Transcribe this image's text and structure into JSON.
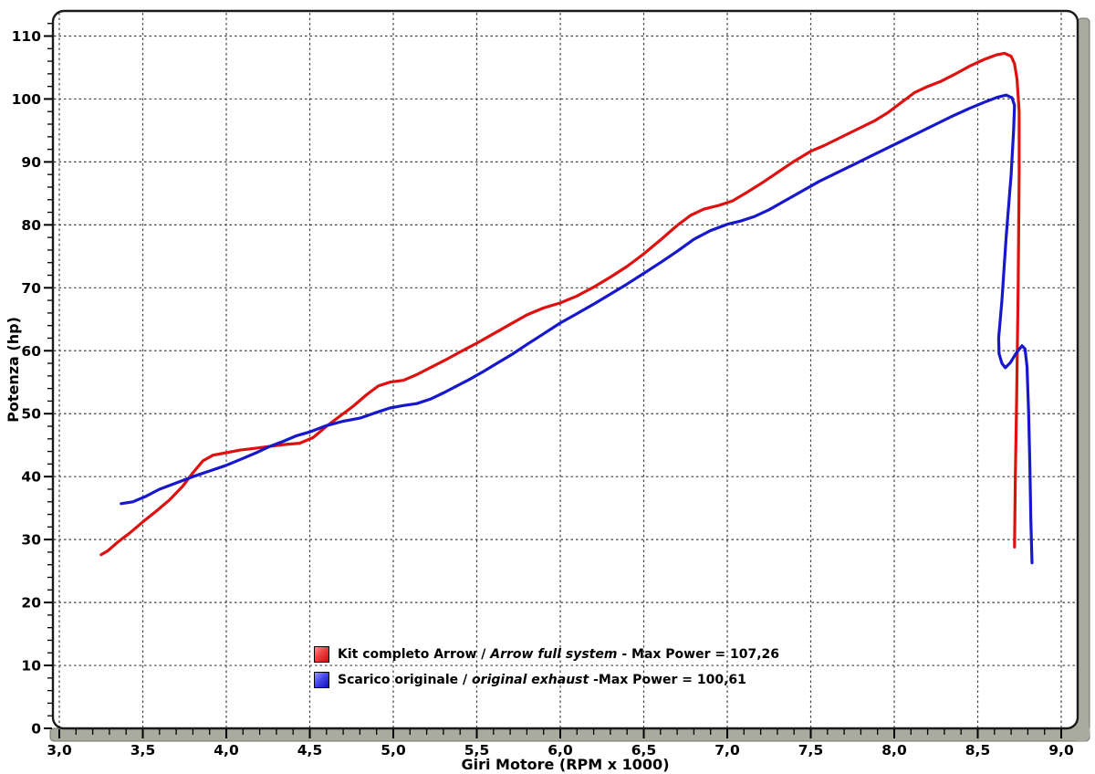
{
  "frame": {
    "plot_background": "#ffffff",
    "border_color": "#1a1a1a",
    "bezel_color": "#a8ab9e",
    "bezel_edge_color": "#6f7267",
    "grid_color": "#3f3f3f",
    "tick_color": "#000000",
    "label_color": "#000000"
  },
  "chart_data": {
    "type": "line",
    "title": "",
    "xlabel": "Giri Motore (RPM x 1000)",
    "ylabel": "Potenza (hp)",
    "grid": {
      "style": "dashed",
      "both_axes": true
    },
    "legend_position": "inside-bottom-center",
    "x_axis": {
      "min": 2.96,
      "max": 9.1,
      "minor_step": 0.1,
      "major_tick_values": [
        3.0,
        3.5,
        4.0,
        4.5,
        5.0,
        5.5,
        6.0,
        6.5,
        7.0,
        7.5,
        8.0,
        8.5,
        9.0
      ],
      "major_tick_labels": [
        "3,0",
        "3,5",
        "4,0",
        "4,5",
        "5,0",
        "5,5",
        "6,0",
        "6,5",
        "7,0",
        "7,5",
        "8,0",
        "8,5",
        "9,0"
      ]
    },
    "y_axis": {
      "min": 0,
      "max": 114,
      "minor_step": 2,
      "major_tick_values": [
        0,
        10,
        20,
        30,
        40,
        50,
        60,
        70,
        80,
        90,
        100,
        110
      ],
      "major_tick_labels": [
        "0",
        "10",
        "20",
        "30",
        "40",
        "50",
        "60",
        "70",
        "80",
        "90",
        "100",
        "110"
      ]
    },
    "series": [
      {
        "id": "arrow_full_system",
        "name": "Kit completo Arrow / Arrow full system",
        "color": "#de1111",
        "max_power": 107.26,
        "points": [
          [
            3.25,
            27.6
          ],
          [
            3.29,
            28.2
          ],
          [
            3.35,
            29.6
          ],
          [
            3.42,
            31.0
          ],
          [
            3.5,
            32.8
          ],
          [
            3.58,
            34.5
          ],
          [
            3.66,
            36.3
          ],
          [
            3.74,
            38.5
          ],
          [
            3.8,
            40.6
          ],
          [
            3.86,
            42.5
          ],
          [
            3.92,
            43.4
          ],
          [
            4.0,
            43.8
          ],
          [
            4.08,
            44.2
          ],
          [
            4.17,
            44.5
          ],
          [
            4.26,
            44.8
          ],
          [
            4.35,
            45.1
          ],
          [
            4.44,
            45.3
          ],
          [
            4.52,
            46.2
          ],
          [
            4.6,
            48.0
          ],
          [
            4.68,
            49.6
          ],
          [
            4.76,
            51.2
          ],
          [
            4.84,
            53.0
          ],
          [
            4.91,
            54.4
          ],
          [
            4.98,
            55.0
          ],
          [
            5.06,
            55.3
          ],
          [
            5.14,
            56.2
          ],
          [
            5.22,
            57.3
          ],
          [
            5.31,
            58.5
          ],
          [
            5.4,
            59.8
          ],
          [
            5.5,
            61.2
          ],
          [
            5.6,
            62.7
          ],
          [
            5.7,
            64.2
          ],
          [
            5.8,
            65.7
          ],
          [
            5.9,
            66.8
          ],
          [
            6.0,
            67.6
          ],
          [
            6.1,
            68.7
          ],
          [
            6.2,
            70.1
          ],
          [
            6.3,
            71.7
          ],
          [
            6.4,
            73.4
          ],
          [
            6.5,
            75.4
          ],
          [
            6.6,
            77.6
          ],
          [
            6.7,
            79.9
          ],
          [
            6.78,
            81.5
          ],
          [
            6.86,
            82.5
          ],
          [
            6.95,
            83.1
          ],
          [
            7.03,
            83.8
          ],
          [
            7.12,
            85.2
          ],
          [
            7.21,
            86.7
          ],
          [
            7.3,
            88.3
          ],
          [
            7.4,
            90.1
          ],
          [
            7.5,
            91.7
          ],
          [
            7.58,
            92.6
          ],
          [
            7.68,
            93.9
          ],
          [
            7.78,
            95.2
          ],
          [
            7.88,
            96.5
          ],
          [
            7.96,
            97.8
          ],
          [
            8.04,
            99.4
          ],
          [
            8.12,
            101.0
          ],
          [
            8.2,
            102.0
          ],
          [
            8.28,
            102.8
          ],
          [
            8.36,
            103.9
          ],
          [
            8.45,
            105.2
          ],
          [
            8.54,
            106.3
          ],
          [
            8.61,
            107.0
          ],
          [
            8.66,
            107.26
          ],
          [
            8.7,
            106.8
          ],
          [
            8.72,
            105.6
          ],
          [
            8.735,
            103.2
          ],
          [
            8.748,
            98.0
          ],
          [
            8.748,
            88.0
          ],
          [
            8.742,
            70.0
          ],
          [
            8.733,
            52.0
          ],
          [
            8.725,
            40.0
          ],
          [
            8.72,
            28.8
          ]
        ]
      },
      {
        "id": "original_exhaust",
        "name": "Scarico originale / original exhaust",
        "color": "#1717cc",
        "max_power": 100.61,
        "points": [
          [
            3.37,
            35.7
          ],
          [
            3.44,
            36.0
          ],
          [
            3.52,
            36.9
          ],
          [
            3.6,
            38.0
          ],
          [
            3.7,
            39.0
          ],
          [
            3.8,
            40.0
          ],
          [
            3.9,
            40.9
          ],
          [
            4.0,
            41.8
          ],
          [
            4.1,
            42.9
          ],
          [
            4.18,
            43.8
          ],
          [
            4.26,
            44.8
          ],
          [
            4.34,
            45.6
          ],
          [
            4.42,
            46.5
          ],
          [
            4.5,
            47.1
          ],
          [
            4.6,
            48.1
          ],
          [
            4.7,
            48.8
          ],
          [
            4.8,
            49.3
          ],
          [
            4.9,
            50.2
          ],
          [
            4.98,
            50.9
          ],
          [
            5.06,
            51.3
          ],
          [
            5.14,
            51.6
          ],
          [
            5.22,
            52.3
          ],
          [
            5.3,
            53.3
          ],
          [
            5.38,
            54.4
          ],
          [
            5.46,
            55.5
          ],
          [
            5.54,
            56.7
          ],
          [
            5.62,
            58.0
          ],
          [
            5.71,
            59.4
          ],
          [
            5.8,
            61.0
          ],
          [
            5.9,
            62.7
          ],
          [
            6.0,
            64.4
          ],
          [
            6.1,
            65.9
          ],
          [
            6.2,
            67.4
          ],
          [
            6.3,
            69.0
          ],
          [
            6.4,
            70.6
          ],
          [
            6.5,
            72.3
          ],
          [
            6.6,
            74.0
          ],
          [
            6.7,
            75.8
          ],
          [
            6.8,
            77.7
          ],
          [
            6.9,
            79.1
          ],
          [
            7.0,
            80.1
          ],
          [
            7.08,
            80.6
          ],
          [
            7.16,
            81.3
          ],
          [
            7.25,
            82.4
          ],
          [
            7.35,
            83.9
          ],
          [
            7.45,
            85.4
          ],
          [
            7.55,
            86.9
          ],
          [
            7.65,
            88.2
          ],
          [
            7.75,
            89.5
          ],
          [
            7.85,
            90.8
          ],
          [
            7.95,
            92.1
          ],
          [
            8.05,
            93.4
          ],
          [
            8.15,
            94.7
          ],
          [
            8.25,
            96.0
          ],
          [
            8.35,
            97.3
          ],
          [
            8.45,
            98.5
          ],
          [
            8.55,
            99.6
          ],
          [
            8.62,
            100.3
          ],
          [
            8.67,
            100.61
          ],
          [
            8.705,
            100.2
          ],
          [
            8.72,
            99.0
          ],
          [
            8.715,
            95.0
          ],
          [
            8.7,
            88.0
          ],
          [
            8.67,
            78.0
          ],
          [
            8.645,
            68.0
          ],
          [
            8.625,
            62.0
          ],
          [
            8.628,
            59.5
          ],
          [
            8.645,
            58.0
          ],
          [
            8.665,
            57.3
          ],
          [
            8.695,
            58.1
          ],
          [
            8.73,
            59.6
          ],
          [
            8.765,
            60.8
          ],
          [
            8.783,
            60.3
          ],
          [
            8.795,
            57.5
          ],
          [
            8.805,
            50.0
          ],
          [
            8.812,
            42.0
          ],
          [
            8.818,
            33.0
          ],
          [
            8.825,
            26.3
          ]
        ]
      }
    ]
  },
  "legend": {
    "items": [
      {
        "swatch_color": "#de1111",
        "text": "Kit completo Arrow / ",
        "italic": "Arrow full system",
        "suffix": " - Max Power = 107,26"
      },
      {
        "swatch_color": "#1717cc",
        "text": "Scarico originale / ",
        "italic": "original exhaust",
        "suffix": " -Max Power = 100,61"
      }
    ]
  }
}
